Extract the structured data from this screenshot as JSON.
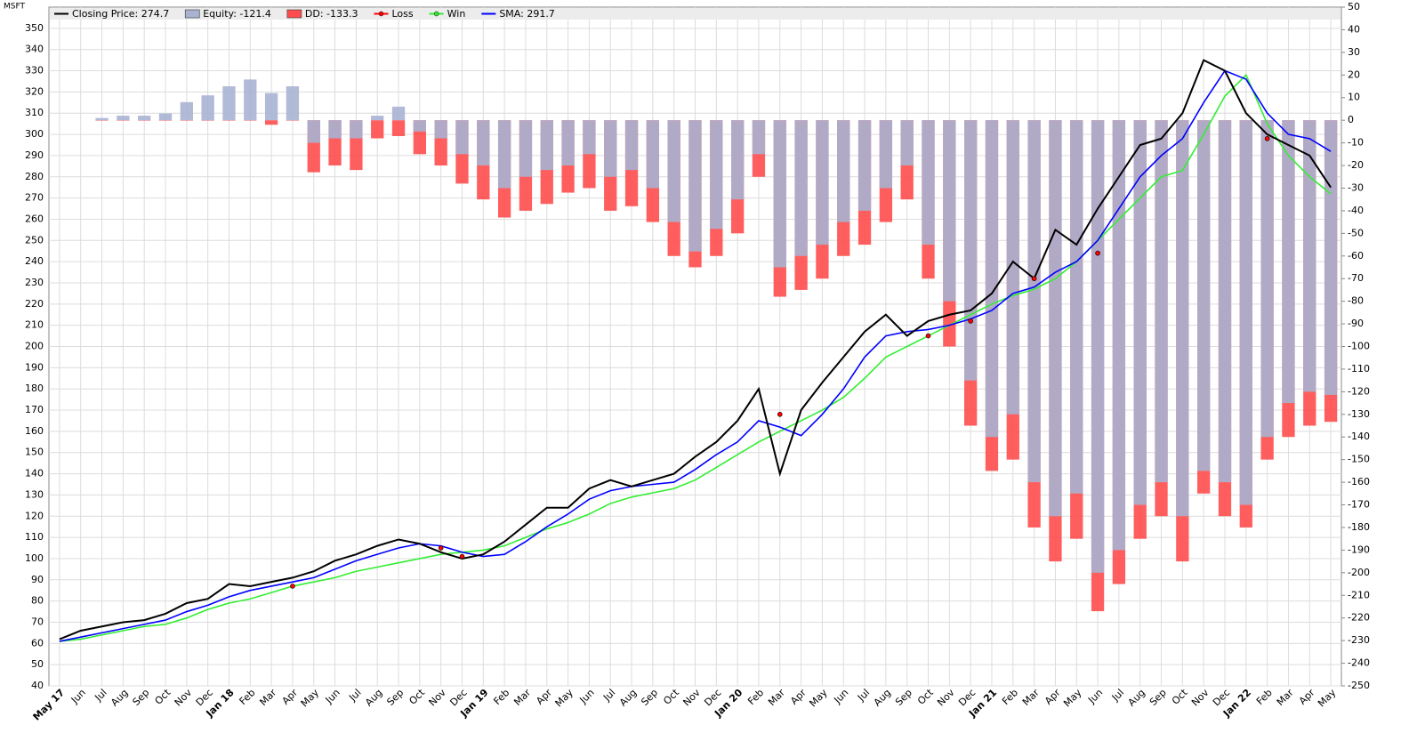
{
  "chart_data": {
    "type": "line",
    "title": "MSFT",
    "categories": [
      "May 17",
      "Jun",
      "Jul",
      "Aug",
      "Sep",
      "Oct",
      "Nov",
      "Dec",
      "Jan 18",
      "Feb",
      "Mar",
      "Apr",
      "May",
      "Jun",
      "Jul",
      "Aug",
      "Sep",
      "Oct",
      "Nov",
      "Dec",
      "Jan 19",
      "Feb",
      "Mar",
      "Apr",
      "May",
      "Jun",
      "Jul",
      "Aug",
      "Sep",
      "Oct",
      "Nov",
      "Dec",
      "Jan 20",
      "Feb",
      "Mar",
      "Apr",
      "May",
      "Jun",
      "Jul",
      "Aug",
      "Sep",
      "Oct",
      "Nov",
      "Dec",
      "Jan 21",
      "Feb",
      "Mar",
      "Apr",
      "May",
      "Jun",
      "Jul",
      "Aug",
      "Sep",
      "Oct",
      "Nov",
      "Dec",
      "Jan 22",
      "Feb",
      "Mar",
      "Apr",
      "May"
    ],
    "series": [
      {
        "name": "Closing Price: 274.7",
        "kind": "line",
        "color": "#000000",
        "values": [
          62,
          66,
          68,
          70,
          71,
          74,
          79,
          81,
          88,
          87,
          89,
          91,
          94,
          99,
          102,
          106,
          109,
          107,
          103,
          100,
          102,
          108,
          116,
          124,
          124,
          133,
          137,
          134,
          137,
          140,
          148,
          155,
          165,
          180,
          140,
          170,
          183,
          195,
          207,
          215,
          205,
          212,
          215,
          217,
          225,
          240,
          232,
          255,
          248,
          265,
          280,
          295,
          298,
          310,
          335,
          330,
          310,
          300,
          295,
          290,
          275
        ]
      },
      {
        "name": "Equity: -121.4",
        "kind": "bar",
        "axis": "y2",
        "color": "#a9b3d1",
        "values": [
          null,
          null,
          1,
          2,
          2,
          3,
          8,
          11,
          15,
          18,
          12,
          15,
          -10,
          -8,
          -8,
          2,
          6,
          -5,
          -8,
          -15,
          -20,
          -30,
          -25,
          -22,
          -20,
          -15,
          -25,
          -22,
          -30,
          -45,
          -58,
          -48,
          -35,
          -15,
          -65,
          -60,
          -55,
          -45,
          -40,
          -30,
          -20,
          -55,
          -80,
          -115,
          -140,
          -130,
          -160,
          -175,
          -165,
          -200,
          -190,
          -170,
          -160,
          -175,
          -155,
          -160,
          -170,
          -140,
          -125,
          -120,
          -121.4
        ]
      },
      {
        "name": "DD: -133.3",
        "kind": "bar",
        "axis": "y2",
        "color": "#ff4d4d",
        "values": [
          null,
          null,
          0,
          0,
          0,
          0,
          0,
          0,
          0,
          0,
          -2,
          0,
          -23,
          -20,
          -22,
          -8,
          -7,
          -15,
          -20,
          -28,
          -35,
          -43,
          -40,
          -37,
          -32,
          -30,
          -40,
          -38,
          -45,
          -60,
          -65,
          -60,
          -50,
          -25,
          -78,
          -75,
          -70,
          -60,
          -55,
          -45,
          -35,
          -70,
          -100,
          -135,
          -155,
          -150,
          -180,
          -195,
          -185,
          -217,
          -205,
          -185,
          -175,
          -195,
          -165,
          -175,
          -180,
          -150,
          -140,
          -135,
          -133.3
        ]
      },
      {
        "name": "Loss",
        "kind": "marker",
        "color": "#ff0000",
        "values": [
          null,
          null,
          null,
          null,
          null,
          null,
          null,
          null,
          null,
          null,
          null,
          87,
          null,
          null,
          null,
          null,
          null,
          null,
          105,
          101,
          null,
          null,
          null,
          null,
          null,
          null,
          null,
          null,
          null,
          null,
          null,
          null,
          null,
          null,
          168,
          null,
          null,
          null,
          null,
          null,
          null,
          205,
          null,
          212,
          null,
          null,
          232,
          null,
          null,
          244,
          null,
          null,
          null,
          null,
          null,
          null,
          null,
          298,
          null,
          null,
          null
        ]
      },
      {
        "name": "Win",
        "kind": "line",
        "color": "#33ee33",
        "values": [
          61,
          62,
          64,
          66,
          68,
          69,
          72,
          76,
          79,
          81,
          84,
          87,
          89,
          91,
          94,
          96,
          98,
          100,
          102,
          103,
          104,
          106,
          110,
          114,
          117,
          121,
          126,
          129,
          131,
          133,
          137,
          143,
          149,
          155,
          160,
          165,
          170,
          176,
          185,
          195,
          200,
          205,
          210,
          215,
          220,
          224,
          227,
          232,
          240,
          250,
          260,
          270,
          280,
          283,
          300,
          318,
          328,
          305,
          290,
          280,
          272
        ]
      },
      {
        "name": "SMA: 291.7",
        "kind": "line",
        "color": "#0000ff",
        "values": [
          61,
          63,
          65,
          67,
          69,
          71,
          75,
          78,
          82,
          85,
          87,
          89,
          91,
          95,
          99,
          102,
          105,
          107,
          106,
          103,
          101,
          102,
          108,
          115,
          121,
          128,
          132,
          134,
          135,
          136,
          142,
          149,
          155,
          165,
          162,
          158,
          168,
          180,
          195,
          205,
          207,
          208,
          210,
          213,
          217,
          225,
          228,
          235,
          240,
          250,
          265,
          280,
          290,
          298,
          315,
          330,
          326,
          310,
          300,
          298,
          292
        ]
      }
    ],
    "ylim": [
      40,
      360
    ],
    "yticks": [
      40,
      50,
      60,
      70,
      80,
      90,
      100,
      110,
      120,
      130,
      140,
      150,
      160,
      170,
      180,
      190,
      200,
      210,
      220,
      230,
      240,
      250,
      260,
      270,
      280,
      290,
      300,
      310,
      320,
      330,
      340,
      350
    ],
    "y2lim": [
      -250,
      50
    ],
    "y2ticks": [
      -250,
      -240,
      -230,
      -220,
      -210,
      -200,
      -190,
      -180,
      -170,
      -160,
      -150,
      -140,
      -130,
      -120,
      -110,
      -100,
      -90,
      -80,
      -70,
      -60,
      -50,
      -40,
      -30,
      -20,
      -10,
      0,
      10,
      20,
      30,
      40,
      50
    ],
    "grid": true
  }
}
